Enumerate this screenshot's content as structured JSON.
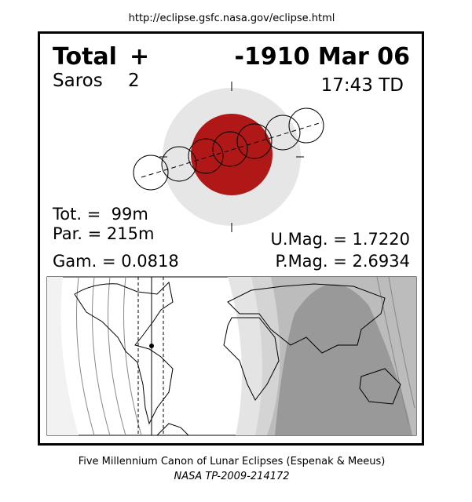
{
  "header": {
    "url": "http://eclipse.gsfc.nasa.gov/eclipse.html"
  },
  "eclipse": {
    "type": "Total",
    "marker": "+",
    "saros_label": "Saros",
    "saros_number": "2",
    "date": "-1910 Mar 06",
    "time": "17:43 TD"
  },
  "stats": {
    "total": "Tot. =  99m",
    "partial": "Par. = 215m",
    "gamma": "Gam. = 0.0818",
    "umbral_magnitude": "U.Mag. = 1.7220",
    "penumbral_magnitude": "P.Mag. = 2.6934"
  },
  "footer": {
    "title": "Five Millennium Canon of Lunar Eclipses (Espenak & Meeus)",
    "reference": "NASA TP-2009-214172"
  }
}
